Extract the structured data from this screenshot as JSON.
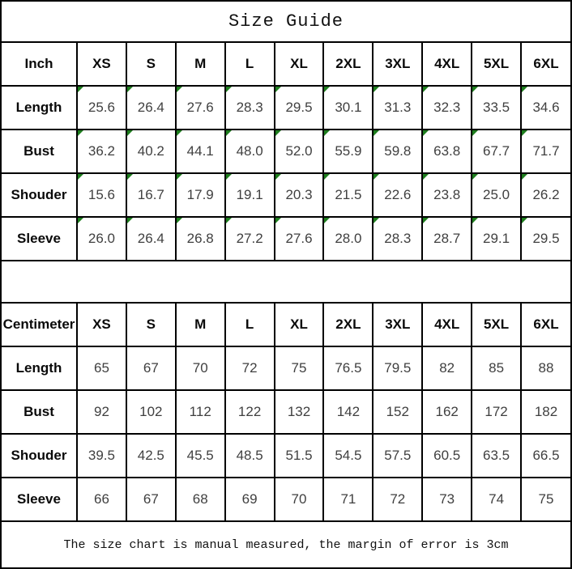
{
  "title": "Size Guide",
  "footer_note": "The size chart is manual measured, the margin of error is 3cm",
  "colors": {
    "border": "#000000",
    "background": "#ffffff",
    "marker_green": "#1e7e1e",
    "label_text": "#0a0a0a",
    "value_text": "#404040"
  },
  "chart_data": [
    {
      "type": "table",
      "title": "Size Guide",
      "unit": "Inch",
      "has_corner_markers": true,
      "columns": [
        "Inch",
        "XS",
        "S",
        "M",
        "L",
        "XL",
        "2XL",
        "3XL",
        "4XL",
        "5XL",
        "6XL"
      ],
      "rows": [
        [
          "Length",
          "25.6",
          "26.4",
          "27.6",
          "28.3",
          "29.5",
          "30.1",
          "31.3",
          "32.3",
          "33.5",
          "34.6"
        ],
        [
          "Bust",
          "36.2",
          "40.2",
          "44.1",
          "48.0",
          "52.0",
          "55.9",
          "59.8",
          "63.8",
          "67.7",
          "71.7"
        ],
        [
          "Shouder",
          "15.6",
          "16.7",
          "17.9",
          "19.1",
          "20.3",
          "21.5",
          "22.6",
          "23.8",
          "25.0",
          "26.2"
        ],
        [
          "Sleeve",
          "26.0",
          "26.4",
          "26.8",
          "27.2",
          "27.6",
          "28.0",
          "28.3",
          "28.7",
          "29.1",
          "29.5"
        ]
      ]
    },
    {
      "type": "table",
      "title": "Size Guide",
      "unit": "Centimeter",
      "has_corner_markers": false,
      "columns": [
        "Centimeter",
        "XS",
        "S",
        "M",
        "L",
        "XL",
        "2XL",
        "3XL",
        "4XL",
        "5XL",
        "6XL"
      ],
      "rows": [
        [
          "Length",
          "65",
          "67",
          "70",
          "72",
          "75",
          "76.5",
          "79.5",
          "82",
          "85",
          "88"
        ],
        [
          "Bust",
          "92",
          "102",
          "112",
          "122",
          "132",
          "142",
          "152",
          "162",
          "172",
          "182"
        ],
        [
          "Shouder",
          "39.5",
          "42.5",
          "45.5",
          "48.5",
          "51.5",
          "54.5",
          "57.5",
          "60.5",
          "63.5",
          "66.5"
        ],
        [
          "Sleeve",
          "66",
          "67",
          "68",
          "69",
          "70",
          "71",
          "72",
          "73",
          "74",
          "75"
        ]
      ]
    }
  ]
}
